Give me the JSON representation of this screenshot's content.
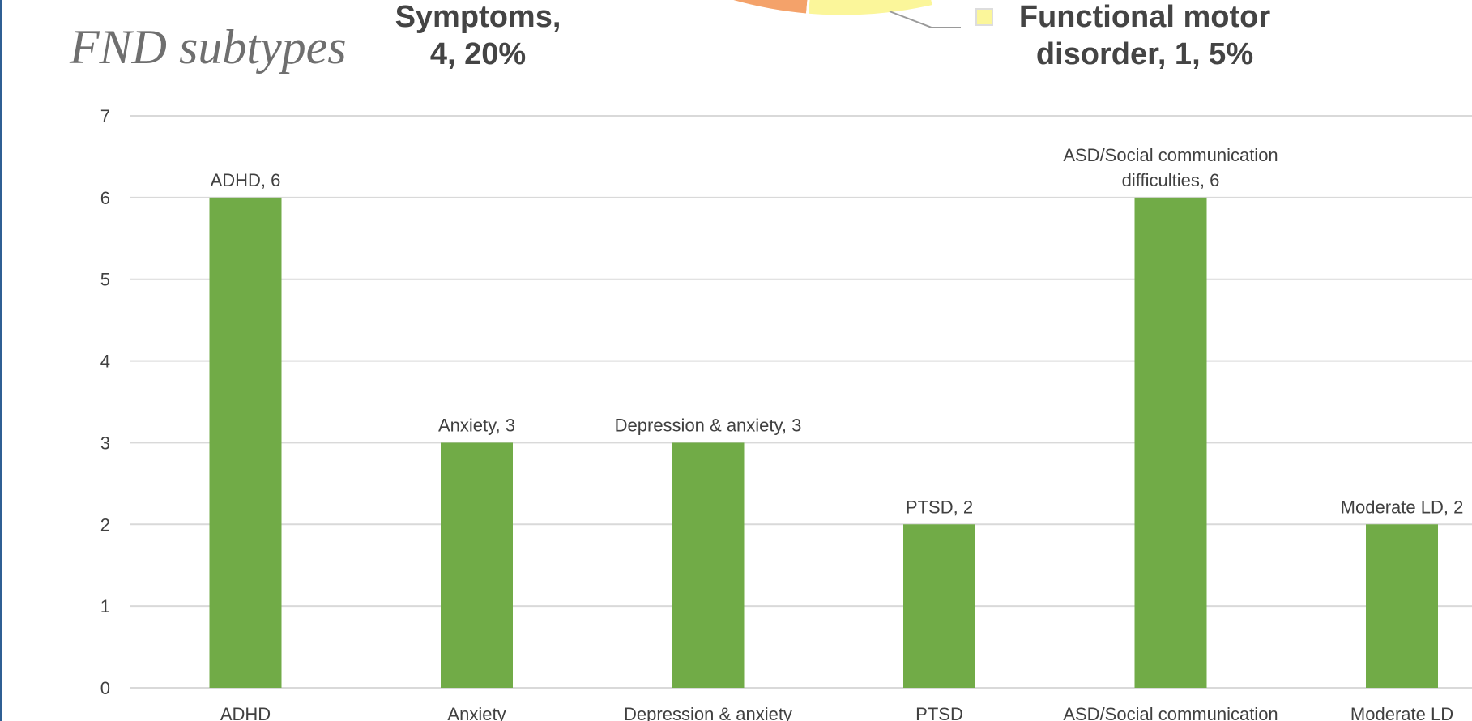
{
  "slide": {
    "title": "FND subtypes"
  },
  "pie_fragment": {
    "label_symptoms": [
      "Symptoms,",
      "4, 20%"
    ],
    "label_fmd": [
      "Functional motor",
      "disorder, 1, 5%"
    ],
    "colors": {
      "orange": "#f4a26a",
      "yellow": "#fbf69a",
      "leader": "#9a9a9a"
    }
  },
  "chart_data": {
    "type": "bar",
    "categories": [
      "ADHD",
      "Anxiety",
      "Depression & anxiety",
      "PTSD",
      "ASD/Social communication difficulties",
      "Moderate LD"
    ],
    "axis_tick_labels": [
      "ADHD",
      "Anxiety",
      "Depression & anxiety",
      "PTSD",
      "ASD/Social communication",
      "Moderate LD"
    ],
    "values": [
      6,
      3,
      3,
      2,
      6,
      2
    ],
    "data_labels": [
      [
        "ADHD, 6"
      ],
      [
        "Anxiety, 3"
      ],
      [
        "Depression & anxiety, 3"
      ],
      [
        "PTSD, 2"
      ],
      [
        "ASD/Social communication",
        "difficulties, 6"
      ],
      [
        "Moderate LD, 2"
      ]
    ],
    "ylim": [
      0,
      7
    ],
    "yticks": [
      0,
      1,
      2,
      3,
      4,
      5,
      6,
      7
    ],
    "grid": true,
    "legend": "none",
    "colors": {
      "bar": "#71ab47",
      "grid": "#d9d9d9",
      "text": "#404040"
    }
  }
}
